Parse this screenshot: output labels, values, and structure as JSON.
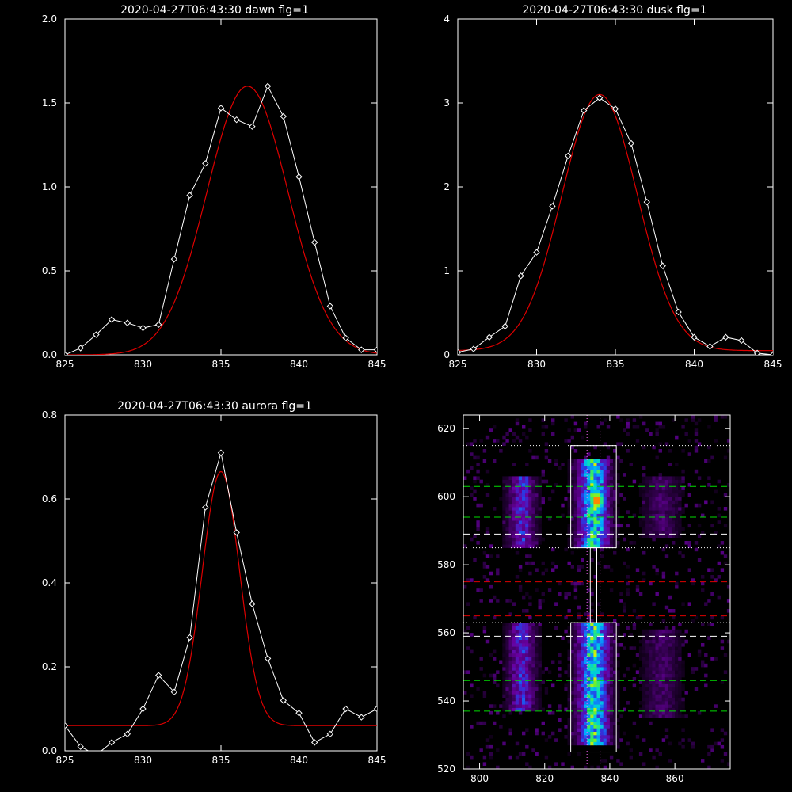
{
  "chart_data": [
    {
      "type": "line",
      "title": "2020-04-27T06:43:30 dawn flg=1",
      "xlim": [
        825,
        845
      ],
      "ylim": [
        0,
        2.0
      ],
      "xticks": [
        "825",
        "830",
        "835",
        "840",
        "845"
      ],
      "yticks": [
        "0.0",
        "0.5",
        "1.0",
        "1.5",
        "2.0"
      ],
      "xtick_values": [
        825,
        830,
        835,
        840,
        845
      ],
      "ytick_values": [
        0,
        0.5,
        1.0,
        1.5,
        2.0
      ],
      "series": [
        {
          "kind": "data",
          "color": "#ffffff",
          "marker": "diamond",
          "x": [
            825,
            826,
            827,
            828,
            829,
            830,
            831,
            832,
            833,
            834,
            835,
            836,
            837,
            838,
            839,
            840,
            841,
            842,
            843,
            844,
            845
          ],
          "y": [
            0.0,
            0.04,
            0.12,
            0.21,
            0.19,
            0.16,
            0.18,
            0.57,
            0.95,
            1.14,
            1.47,
            1.4,
            1.36,
            1.6,
            1.42,
            1.06,
            0.67,
            0.29,
            0.1,
            0.03,
            0.03
          ]
        },
        {
          "kind": "fit",
          "color": "#dd0000",
          "gauss": {
            "amp": 1.6,
            "center": 836.7,
            "sigma": 2.6,
            "base": 0.0
          }
        }
      ]
    },
    {
      "type": "line",
      "title": "2020-04-27T06:43:30 dusk flg=1",
      "xlim": [
        825,
        845
      ],
      "ylim": [
        0,
        4
      ],
      "xticks": [
        "825",
        "830",
        "835",
        "840",
        "845"
      ],
      "yticks": [
        "0",
        "1",
        "2",
        "3",
        "4"
      ],
      "xtick_values": [
        825,
        830,
        835,
        840,
        845
      ],
      "ytick_values": [
        0,
        1,
        2,
        3,
        4
      ],
      "series": [
        {
          "kind": "data",
          "color": "#ffffff",
          "marker": "diamond",
          "x": [
            825,
            826,
            827,
            828,
            829,
            830,
            831,
            832,
            833,
            834,
            835,
            836,
            837,
            838,
            839,
            840,
            841,
            842,
            843,
            844,
            845
          ],
          "y": [
            0.03,
            0.07,
            0.21,
            0.34,
            0.94,
            1.22,
            1.77,
            2.37,
            2.91,
            3.06,
            2.93,
            2.52,
            1.82,
            1.06,
            0.51,
            0.21,
            0.1,
            0.21,
            0.17,
            0.02,
            0.0
          ]
        },
        {
          "kind": "fit",
          "color": "#dd0000",
          "gauss": {
            "amp": 3.05,
            "center": 834.0,
            "sigma": 2.4,
            "base": 0.05
          }
        }
      ]
    },
    {
      "type": "line",
      "title": "2020-04-27T06:43:30 aurora flg=1",
      "xlim": [
        825,
        845
      ],
      "ylim": [
        0,
        0.8
      ],
      "xticks": [
        "825",
        "830",
        "835",
        "840",
        "845"
      ],
      "yticks": [
        "0.0",
        "0.2",
        "0.4",
        "0.6",
        "0.8"
      ],
      "xtick_values": [
        825,
        830,
        835,
        840,
        845
      ],
      "ytick_values": [
        0,
        0.2,
        0.4,
        0.6,
        0.8
      ],
      "series": [
        {
          "kind": "data",
          "color": "#ffffff",
          "marker": "diamond",
          "x": [
            825,
            826,
            827,
            828,
            829,
            830,
            831,
            832,
            833,
            834,
            835,
            836,
            837,
            838,
            839,
            840,
            841,
            842,
            843,
            844,
            845
          ],
          "y": [
            0.06,
            0.01,
            -0.01,
            0.02,
            0.04,
            0.1,
            0.18,
            0.14,
            0.27,
            0.58,
            0.71,
            0.52,
            0.35,
            0.22,
            0.12,
            0.09,
            0.02,
            0.04,
            0.1,
            0.08,
            0.1
          ]
        },
        {
          "kind": "fit",
          "color": "#dd0000",
          "gauss": {
            "amp": 0.605,
            "center": 835.0,
            "sigma": 1.2,
            "base": 0.06
          }
        }
      ]
    },
    {
      "type": "heatmap",
      "xlim": [
        795,
        877
      ],
      "ylim": [
        520,
        624
      ],
      "xticks": [
        "800",
        "820",
        "840",
        "860"
      ],
      "yticks": [
        "520",
        "540",
        "560",
        "580",
        "600",
        "620"
      ],
      "xtick_values": [
        800,
        820,
        840,
        860
      ],
      "ytick_values": [
        520,
        540,
        560,
        580,
        600,
        620
      ],
      "emission_columns": [
        {
          "x_center": 813,
          "x_width": 6,
          "segments": [
            [
              585,
              605
            ],
            [
              537,
              562
            ]
          ],
          "strength": 0.55
        },
        {
          "x_center": 835,
          "x_width": 7,
          "segments": [
            [
              585,
              610
            ],
            [
              527,
              562
            ]
          ],
          "strength": 0.9
        },
        {
          "x_center": 856,
          "x_width": 8,
          "segments": [
            [
              588,
              605
            ],
            [
              535,
              560
            ]
          ],
          "strength": 0.3
        }
      ],
      "hot_spot": {
        "x": 836,
        "y": 599
      },
      "boxes": [
        {
          "x0": 828,
          "x1": 842,
          "y0": 585,
          "y1": 615,
          "color": "#ffffff"
        },
        {
          "x0": 828,
          "x1": 842,
          "y0": 525,
          "y1": 563,
          "color": "#ffffff"
        },
        {
          "x0": 834,
          "x1": 836,
          "y0": 563,
          "y1": 585,
          "color": "#ffffff"
        }
      ],
      "hlines": [
        {
          "y": 615,
          "color": "#ffffff",
          "style": "dotted"
        },
        {
          "y": 603,
          "color": "#00dd00",
          "style": "dashed"
        },
        {
          "y": 594,
          "color": "#00dd00",
          "style": "dashed"
        },
        {
          "y": 589,
          "color": "#ffffff",
          "style": "dashed"
        },
        {
          "y": 585,
          "color": "#ffffff",
          "style": "dotted"
        },
        {
          "y": 575,
          "color": "#dd0000",
          "style": "dashed"
        },
        {
          "y": 565,
          "color": "#dd0000",
          "style": "dashed"
        },
        {
          "y": 563,
          "color": "#ffffff",
          "style": "dotted"
        },
        {
          "y": 559,
          "color": "#ffffff",
          "style": "dashed"
        },
        {
          "y": 546,
          "color": "#00dd00",
          "style": "dashed"
        },
        {
          "y": 537,
          "color": "#00dd00",
          "style": "dashed"
        },
        {
          "y": 525,
          "color": "#ffffff",
          "style": "dotted"
        }
      ],
      "vlines": [
        {
          "x": 833,
          "color": "#ff66ff",
          "style": "dotted"
        },
        {
          "x": 837,
          "color": "#ff66ff",
          "style": "dotted"
        }
      ]
    }
  ]
}
